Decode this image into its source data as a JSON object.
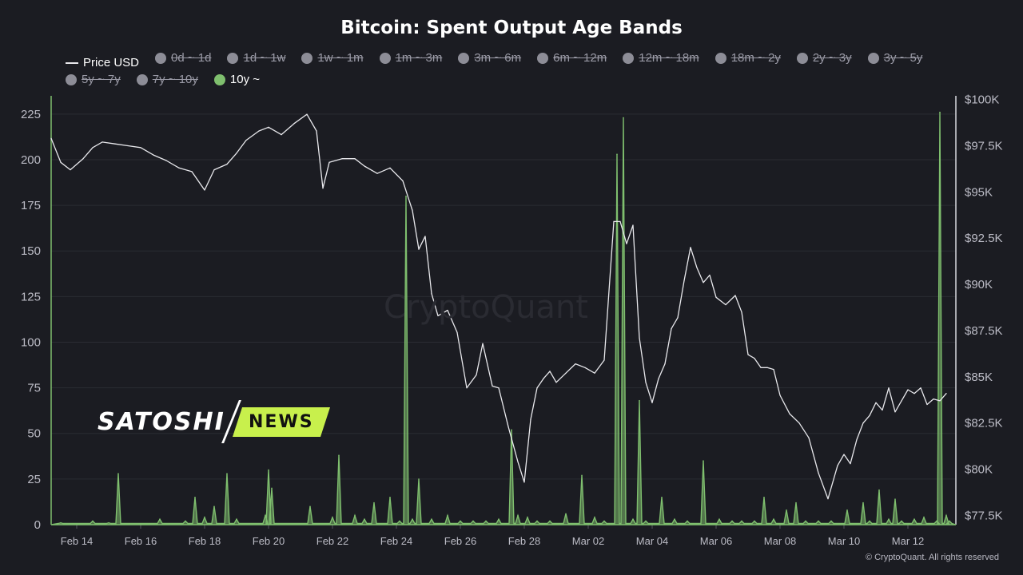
{
  "chart_data": {
    "type": "line",
    "title": "Bitcoin: Spent Output Age Bands",
    "legend": {
      "placement": "top",
      "entries": [
        {
          "name": "Price USD",
          "active": true,
          "swatch": "line"
        },
        {
          "name": "0d ~ 1d",
          "active": false
        },
        {
          "name": "1d ~ 1w",
          "active": false
        },
        {
          "name": "1w ~ 1m",
          "active": false
        },
        {
          "name": "1m ~ 3m",
          "active": false
        },
        {
          "name": "3m ~ 6m",
          "active": false
        },
        {
          "name": "6m ~ 12m",
          "active": false
        },
        {
          "name": "12m ~ 18m",
          "active": false
        },
        {
          "name": "18m ~ 2y",
          "active": false
        },
        {
          "name": "2y ~ 3y",
          "active": false
        },
        {
          "name": "3y ~ 5y",
          "active": false
        },
        {
          "name": "5y ~ 7y",
          "active": false
        },
        {
          "name": "7y ~ 10y",
          "active": false
        },
        {
          "name": "10y ~",
          "active": true
        }
      ]
    },
    "x_ticks": [
      "Feb 14",
      "Feb 16",
      "Feb 18",
      "Feb 20",
      "Feb 22",
      "Feb 24",
      "Feb 26",
      "Feb 28",
      "Mar 02",
      "Mar 04",
      "Mar 06",
      "Mar 08",
      "Mar 10",
      "Mar 12"
    ],
    "x_range": [
      13.2,
      41.5
    ],
    "y_left": {
      "ticks": [
        0,
        25,
        50,
        75,
        100,
        125,
        150,
        175,
        200,
        225
      ],
      "range": [
        0,
        235
      ]
    },
    "y_right": {
      "ticks": [
        "$77.5K",
        "$80K",
        "$82.5K",
        "$85K",
        "$87.5K",
        "$90K",
        "$92.5K",
        "$95K",
        "$97.5K",
        "$100K"
      ],
      "tick_values": [
        77500,
        80000,
        82500,
        85000,
        87500,
        90000,
        92500,
        95000,
        97500,
        100000
      ],
      "range": [
        77000,
        100200
      ]
    },
    "grid": true,
    "colors": {
      "price": "#e8e8ec",
      "band_10y": "#7fbf6e",
      "grid": "#2b2c33",
      "axis": "#bcbcc6"
    },
    "series": [
      {
        "name": "Price USD",
        "axis": "right",
        "x": [
          13.2,
          13.5,
          13.8,
          14.2,
          14.5,
          14.8,
          15.2,
          15.6,
          16.0,
          16.4,
          16.8,
          17.2,
          17.6,
          18.0,
          18.3,
          18.7,
          19.0,
          19.3,
          19.7,
          20.0,
          20.4,
          20.8,
          21.2,
          21.5,
          21.7,
          21.9,
          22.3,
          22.7,
          23.0,
          23.4,
          23.8,
          24.2,
          24.5,
          24.7,
          24.9,
          25.1,
          25.3,
          25.6,
          25.9,
          26.2,
          26.5,
          26.7,
          27.0,
          27.2,
          27.5,
          27.8,
          28.0,
          28.2,
          28.4,
          28.6,
          28.8,
          29.0,
          29.3,
          29.6,
          29.9,
          30.2,
          30.5,
          30.8,
          31.0,
          31.2,
          31.4,
          31.6,
          31.8,
          32.0,
          32.2,
          32.4,
          32.6,
          32.8,
          33.0,
          33.2,
          33.4,
          33.6,
          33.8,
          34.0,
          34.3,
          34.6,
          34.8,
          35.0,
          35.2,
          35.4,
          35.6,
          35.8,
          36.0,
          36.3,
          36.6,
          36.9,
          37.2,
          37.5,
          37.8,
          38.0,
          38.2,
          38.4,
          38.6,
          38.8,
          39.0,
          39.2,
          39.4,
          39.6,
          39.8,
          40.0,
          40.2,
          40.4,
          40.6,
          40.8,
          41.0,
          41.2
        ],
        "values": [
          97900,
          96600,
          96200,
          96800,
          97400,
          97700,
          97600,
          97500,
          97400,
          97000,
          96700,
          96300,
          96100,
          95100,
          96200,
          96500,
          97100,
          97800,
          98300,
          98500,
          98100,
          98700,
          99200,
          98300,
          95200,
          96600,
          96800,
          96800,
          96400,
          96000,
          96300,
          95600,
          94000,
          91900,
          92600,
          89500,
          88300,
          88600,
          87400,
          84400,
          85100,
          86800,
          84500,
          84400,
          82300,
          80400,
          79300,
          82700,
          84400,
          84900,
          85300,
          84700,
          85200,
          85700,
          85500,
          85200,
          85900,
          93400,
          93400,
          92200,
          93200,
          87100,
          84700,
          83600,
          84900,
          85700,
          87600,
          88200,
          90200,
          92000,
          90900,
          90100,
          90500,
          89300,
          88900,
          89400,
          88500,
          86200,
          86000,
          85500,
          85500,
          85400,
          84000,
          83000,
          82500,
          81700,
          79800,
          78400,
          80200,
          80800,
          80300,
          81600,
          82500,
          82900,
          83600,
          83200,
          84400,
          83100,
          83700,
          84300,
          84100,
          84400,
          83500,
          83800,
          83700,
          84100
        ]
      },
      {
        "name": "10y ~",
        "axis": "left",
        "x": [
          13.5,
          14.5,
          15.0,
          15.3,
          16.6,
          17.4,
          17.7,
          18.0,
          18.3,
          18.7,
          19.0,
          19.9,
          20.0,
          20.1,
          21.3,
          22.0,
          22.2,
          22.7,
          23.0,
          23.3,
          23.8,
          24.1,
          24.3,
          24.5,
          24.7,
          25.1,
          25.6,
          26.0,
          26.4,
          26.8,
          27.2,
          27.6,
          27.8,
          28.1,
          28.4,
          28.8,
          29.3,
          29.8,
          30.2,
          30.5,
          30.9,
          31.1,
          31.4,
          31.6,
          31.8,
          32.3,
          32.7,
          33.1,
          33.6,
          34.1,
          34.5,
          34.8,
          35.2,
          35.5,
          35.8,
          36.2,
          36.5,
          36.8,
          37.2,
          37.6,
          38.1,
          38.6,
          38.8,
          39.1,
          39.4,
          39.6,
          39.8,
          40.2,
          40.5,
          40.9,
          41.0,
          41.2,
          41.3
        ],
        "values": [
          1,
          2,
          1,
          28,
          3,
          2,
          15,
          4,
          10,
          28,
          3,
          5,
          30,
          20,
          10,
          4,
          38,
          5,
          3,
          12,
          15,
          2,
          180,
          3,
          25,
          3,
          5,
          2,
          2,
          2,
          3,
          52,
          5,
          4,
          2,
          2,
          6,
          27,
          4,
          2,
          203,
          223,
          3,
          68,
          2,
          15,
          3,
          2,
          35,
          3,
          2,
          2,
          2,
          15,
          3,
          8,
          12,
          2,
          2,
          2,
          8,
          12,
          2,
          19,
          3,
          14,
          2,
          3,
          4,
          2,
          226,
          5,
          2
        ]
      }
    ]
  }
}
